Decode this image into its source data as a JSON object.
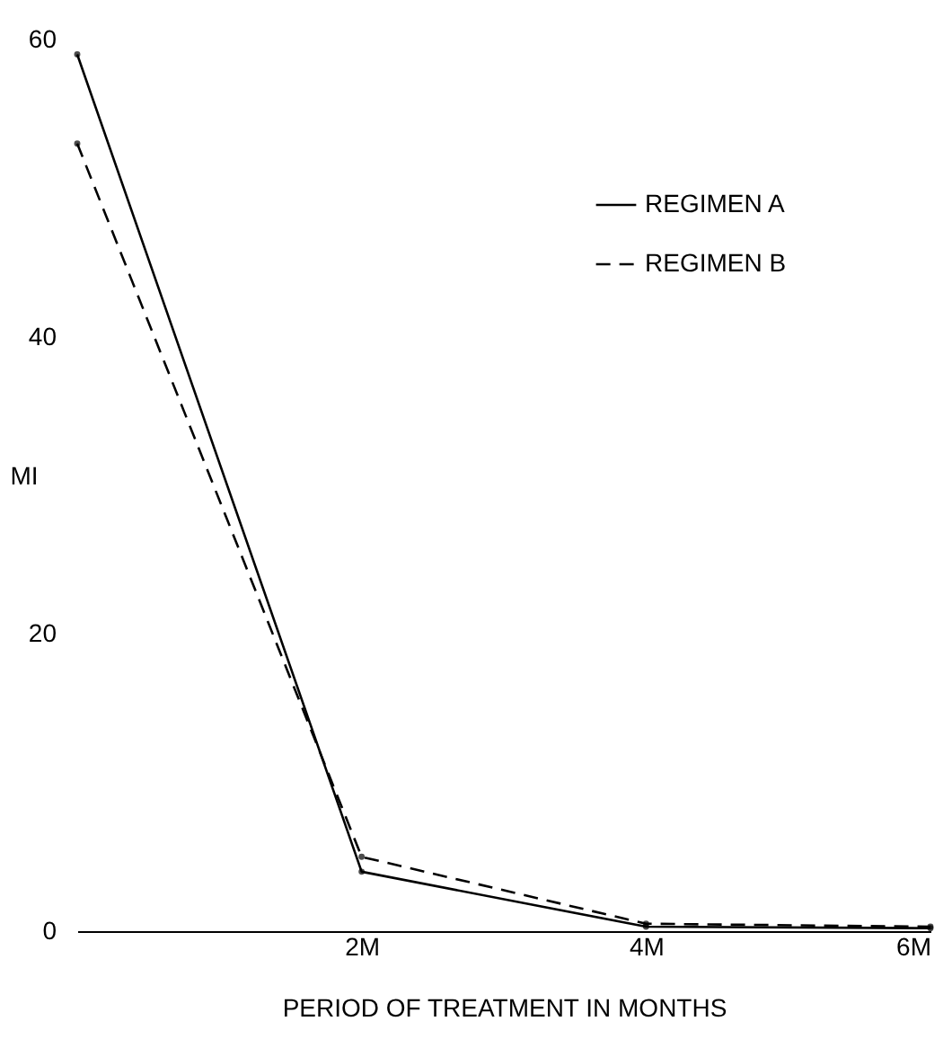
{
  "chart_data": {
    "type": "line",
    "xlabel": "PERIOD OF TREATMENT IN MONTHS",
    "ylabel": "MI",
    "x": [
      0,
      2,
      4,
      6
    ],
    "series": [
      {
        "name": "REGIMEN A",
        "color": "#000000",
        "line_style": "solid",
        "values": [
          59,
          4,
          0.3,
          0.2
        ]
      },
      {
        "name": "REGIMEN B",
        "color": "#000000",
        "line_style": "dashed",
        "values": [
          53,
          5,
          0.5,
          0.3
        ]
      }
    ],
    "xlim": [
      0,
      6
    ],
    "xticks": [
      {
        "value": 2,
        "label": "2M"
      },
      {
        "value": 4,
        "label": "4M"
      },
      {
        "value": 6,
        "label": "6M"
      }
    ],
    "ylim": [
      0,
      60
    ],
    "yticks": [
      0,
      20,
      40,
      60
    ],
    "grid": false,
    "legend": "top right",
    "marker": "circle"
  }
}
